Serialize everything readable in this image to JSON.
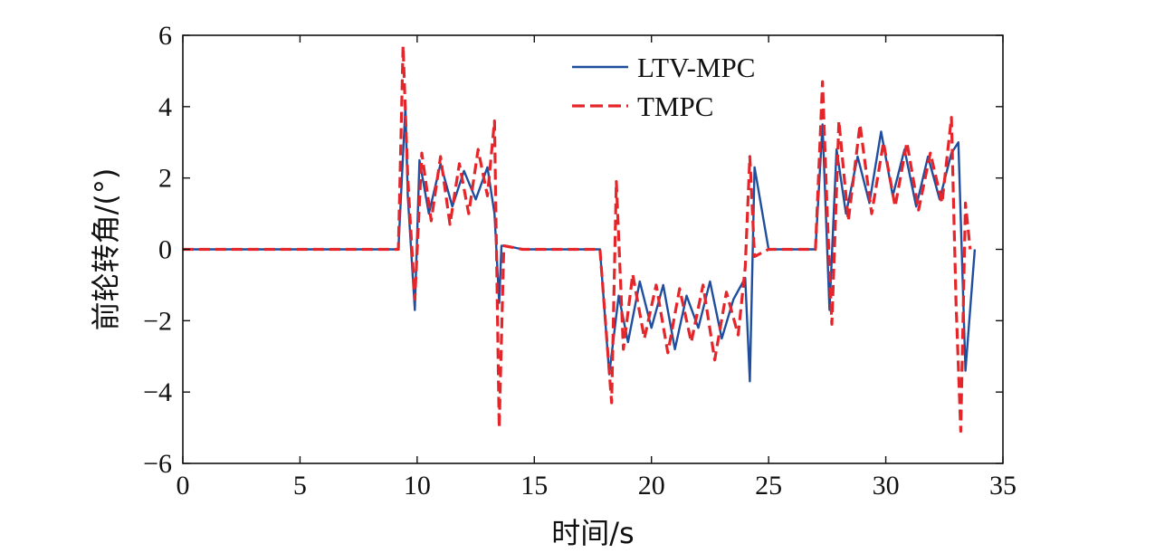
{
  "chart_data": {
    "type": "line",
    "title": "",
    "xlabel": "时间/s",
    "ylabel": "前轮转角/(°)",
    "xlim": [
      0,
      35
    ],
    "ylim": [
      -6,
      6
    ],
    "xticks": [
      0,
      5,
      10,
      15,
      20,
      25,
      30,
      35
    ],
    "yticks": [
      -6,
      -4,
      -2,
      0,
      2,
      4,
      6
    ],
    "xtick_labels": [
      "0",
      "5",
      "10",
      "15",
      "20",
      "25",
      "30",
      "35"
    ],
    "ytick_labels": [
      "−6",
      "−4",
      "−2",
      "0",
      "2",
      "4",
      "6"
    ],
    "grid": false,
    "legend_position": "top-center",
    "series": [
      {
        "name": "LTV-MPC",
        "color": "#1f4e9e",
        "style": "solid",
        "x": [
          0,
          9.2,
          9.5,
          9.6,
          9.9,
          10.1,
          10.5,
          11.0,
          11.5,
          12.0,
          12.5,
          13.0,
          13.3,
          13.5,
          13.6,
          13.8,
          14.5,
          17.8,
          18.2,
          18.6,
          19.0,
          19.5,
          20.0,
          20.5,
          21.0,
          21.5,
          22.0,
          22.5,
          23.0,
          23.5,
          24.0,
          24.2,
          24.4,
          25.0,
          27.0,
          27.3,
          27.6,
          27.9,
          28.3,
          28.8,
          29.3,
          29.8,
          30.3,
          30.8,
          31.3,
          31.8,
          32.3,
          32.8,
          33.1,
          33.4,
          33.8
        ],
        "y": [
          0,
          0,
          4.0,
          1.5,
          -1.7,
          2.5,
          1.0,
          2.4,
          1.2,
          2.2,
          1.4,
          2.3,
          1.0,
          -1.5,
          0.1,
          0.1,
          0.0,
          0.0,
          -3.5,
          -1.3,
          -2.6,
          -0.9,
          -2.2,
          -1.0,
          -2.8,
          -1.3,
          -2.2,
          -0.9,
          -2.5,
          -1.4,
          -0.8,
          -3.7,
          2.3,
          0.0,
          0.0,
          3.5,
          -1.7,
          2.8,
          1.0,
          2.6,
          1.3,
          3.3,
          1.5,
          2.8,
          1.2,
          2.6,
          1.4,
          2.7,
          3.0,
          -3.4,
          0.0
        ]
      },
      {
        "name": "TMPC",
        "color": "#e4262b",
        "style": "dashed",
        "x": [
          0,
          9.2,
          9.4,
          9.6,
          9.9,
          10.2,
          10.6,
          11.0,
          11.4,
          11.8,
          12.2,
          12.6,
          13.0,
          13.3,
          13.5,
          13.7,
          14.5,
          17.8,
          18.3,
          18.5,
          18.8,
          19.2,
          19.7,
          20.2,
          20.7,
          21.2,
          21.7,
          22.2,
          22.7,
          23.2,
          23.7,
          24.0,
          24.2,
          24.4,
          25.0,
          27.0,
          27.3,
          27.5,
          27.7,
          28.0,
          28.4,
          28.9,
          29.4,
          29.9,
          30.4,
          30.9,
          31.4,
          31.9,
          32.4,
          32.8,
          33.0,
          33.2,
          33.4,
          33.6
        ],
        "y": [
          0,
          0,
          5.7,
          2.0,
          -1.4,
          2.7,
          0.8,
          2.6,
          0.7,
          2.4,
          1.0,
          2.8,
          1.5,
          3.6,
          -5.0,
          0.1,
          0.0,
          0.0,
          -4.3,
          1.9,
          -2.8,
          -0.7,
          -2.5,
          -1.0,
          -2.9,
          -1.1,
          -2.6,
          -1.0,
          -3.1,
          -1.2,
          -2.4,
          -0.5,
          2.6,
          -0.2,
          0.0,
          0.0,
          4.7,
          1.0,
          -2.1,
          3.6,
          0.8,
          3.5,
          1.0,
          3.0,
          1.2,
          3.0,
          1.1,
          2.7,
          1.3,
          3.7,
          -1.5,
          -5.1,
          1.3,
          0.0
        ]
      }
    ]
  }
}
